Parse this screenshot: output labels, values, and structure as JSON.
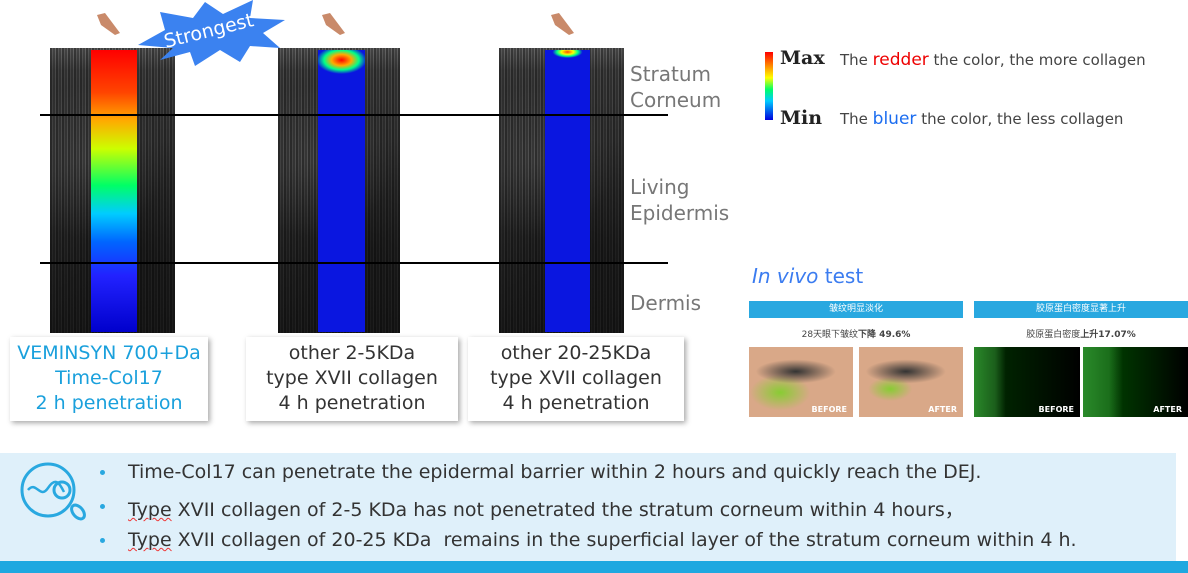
{
  "badge": "Strongest",
  "layers": {
    "stratum": "Stratum Corneum",
    "living": "Living Epidermis",
    "dermis": "Dermis"
  },
  "captions": [
    {
      "l1": "VEMINSYN 700+Da",
      "l2": "Time-Col17",
      "l3": "2 h penetration",
      "color": "#1aa0dc"
    },
    {
      "l1": "other 2-5KDa",
      "l2": "type XVII collagen",
      "l3": "4 h penetration",
      "color": "#333333"
    },
    {
      "l1": "other 20-25KDa",
      "l2": "type XVII collagen",
      "l3": "4 h penetration",
      "color": "#333333"
    }
  ],
  "legend": {
    "max": "Max",
    "min": "Min",
    "max_pre": "The ",
    "max_hl": "redder",
    "max_post": " the color, the more collagen",
    "min_pre": "The ",
    "min_hl": "bluer",
    "min_post": " the color, the less collagen"
  },
  "invivo": {
    "title_italic": "In vivo",
    "title_rest": " test",
    "panel1": {
      "header": "皱纹明显淡化",
      "sub": "28天眼下皱纹",
      "sub_bold": "下降 49.6%",
      "before": "BEFORE",
      "after": "AFTER"
    },
    "panel2": {
      "header": "胶原蛋白密度显著上升",
      "sub": "胶原蛋白密度",
      "sub_bold": "上升17.07%",
      "before": "BEFORE",
      "after": "AFTER"
    }
  },
  "bullets": [
    {
      "pre": "",
      "sq": "",
      "text": "Time-Col17 can penetrate the epidermal barrier within 2 hours and quickly reach the DEJ."
    },
    {
      "pre": "",
      "sq": "Type",
      "text": " XVII collagen of 2-5 KDa has not penetrated the stratum corneum within 4 hours，"
    },
    {
      "pre": "",
      "sq": "Type",
      "text": " XVII collagen of 20-25 KDa  remains in the superficial layer of the stratum corneum within 4 h."
    }
  ],
  "colors": {
    "accent": "#29a8e0",
    "band": "#dff0fa",
    "badge": "#3b82f0"
  }
}
